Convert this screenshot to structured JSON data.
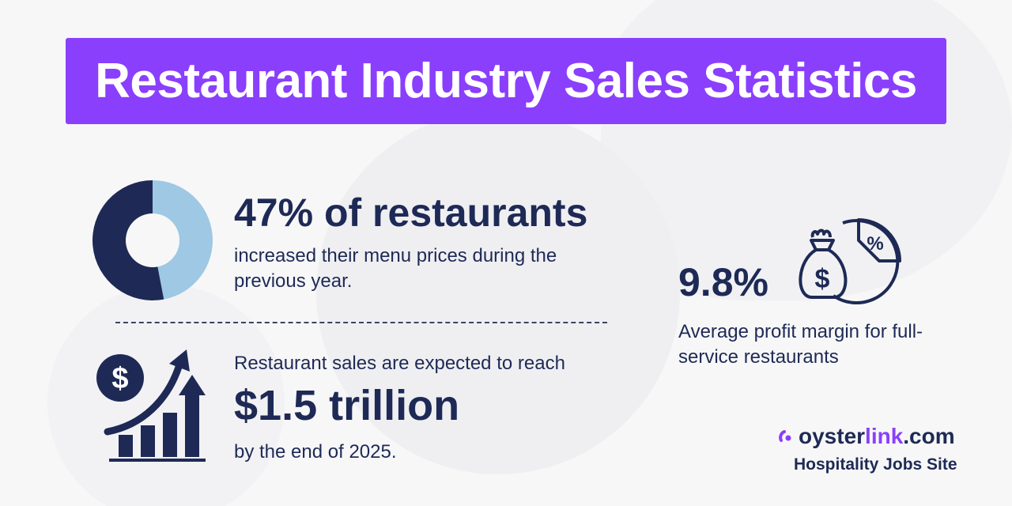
{
  "title": "Restaurant Industry Sales Statistics",
  "stat_menu_prices": {
    "headline": "47% of restaurants",
    "description": "increased their menu prices during the previous year.",
    "share_percent": 47,
    "colors": {
      "share": "#9ec8e4",
      "rest": "#1e2a55"
    }
  },
  "stat_sales": {
    "lead": "Restaurant sales are expected to reach",
    "headline": "$1.5 trillion",
    "tail": "by the end of 2025.",
    "icon": "dollar-growth-chart-icon"
  },
  "stat_margin": {
    "headline": "9.8%",
    "description": "Average profit margin for full-service restaurants",
    "icon": "money-bag-pie-chart-icon"
  },
  "brand": {
    "oyster": "oyster",
    "link": "link",
    "com": ".com",
    "tagline": "Hospitality Jobs Site",
    "accent_color": "#8a3ffc"
  },
  "colors": {
    "title_bar": "#8a3ffc",
    "text": "#1e2a55",
    "background": "#f7f7f8"
  }
}
